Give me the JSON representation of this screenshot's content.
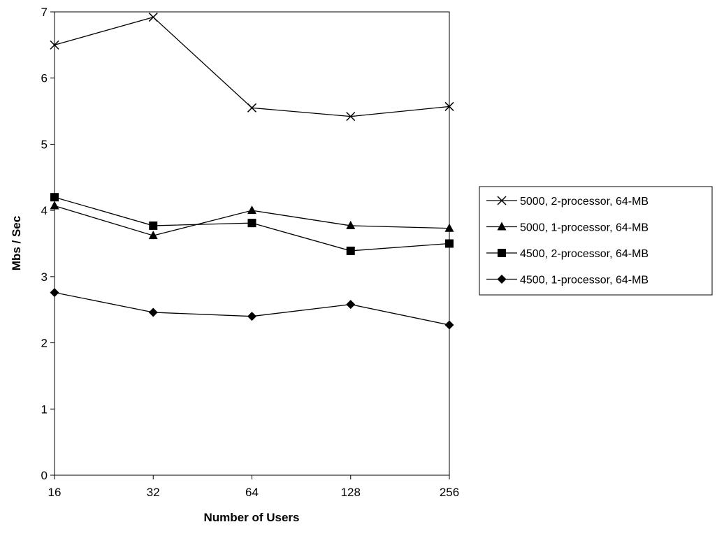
{
  "chart_data": {
    "type": "line",
    "title": "",
    "xlabel": "Number of Users",
    "ylabel": "Mbs / Sec",
    "categories": [
      "16",
      "32",
      "64",
      "128",
      "256"
    ],
    "x_scale": "log2",
    "ylim": [
      0,
      7
    ],
    "yticks": [
      0,
      1,
      2,
      3,
      4,
      5,
      6,
      7
    ],
    "grid": false,
    "legend_position": "right",
    "line_color": "#000000",
    "series": [
      {
        "name": "5000, 2-processor, 64-MB",
        "marker": "x",
        "values": [
          6.5,
          6.92,
          5.55,
          5.42,
          5.57
        ]
      },
      {
        "name": "5000, 1-processor, 64-MB",
        "marker": "triangle",
        "values": [
          4.07,
          3.62,
          4.0,
          3.77,
          3.73
        ]
      },
      {
        "name": "4500, 2-processor, 64-MB",
        "marker": "square",
        "values": [
          4.2,
          3.77,
          3.81,
          3.39,
          3.5
        ]
      },
      {
        "name": "4500, 1-processor, 64-MB",
        "marker": "diamond",
        "values": [
          2.76,
          2.46,
          2.4,
          2.58,
          2.27
        ]
      }
    ]
  }
}
